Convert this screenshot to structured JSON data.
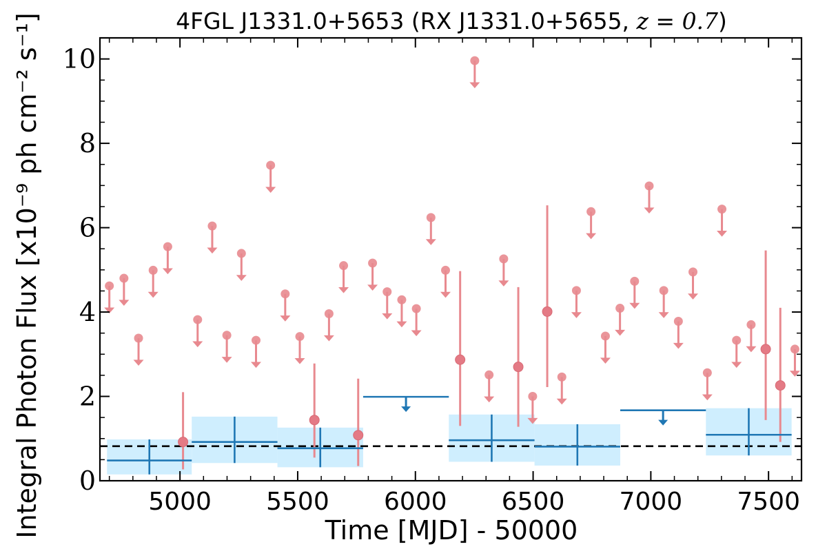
{
  "chart_data": {
    "type": "scatter",
    "title": "4FGL J1331.0+5653 (RX J1331.0+5655, z = 0.7)",
    "title_parts": {
      "prefix": "4FGL J1331.0+5653 (RX J1331.0+5655, ",
      "math": "z = 0.7",
      "suffix": ")"
    },
    "xlabel": "Time [MJD] - 50000",
    "ylabel": "Integral Photon Flux [x10⁻⁹ ph cm⁻² s⁻¹]",
    "xlim": [
      4660,
      7640
    ],
    "ylim": [
      0,
      10.5
    ],
    "x_ticks": [
      "5000",
      "5500",
      "6000",
      "6500",
      "7000",
      "7500"
    ],
    "y_ticks": [
      "0",
      "2",
      "4",
      "6",
      "8",
      "10"
    ],
    "grid": false,
    "mean_flux_dashed_line": 0.82,
    "colors": {
      "monthly": "#e8898f",
      "yearly": "#1f77b4",
      "yearly_band": "#cfeefe",
      "mean_line": "#000000"
    },
    "series": [
      {
        "kind": "upper_limit",
        "color": "#e8898f",
        "points": [
          [
            4700,
            4.62
          ],
          [
            4762,
            4.8
          ],
          [
            4824,
            3.38
          ],
          [
            4886,
            4.99
          ],
          [
            4948,
            5.55
          ],
          [
            5075,
            3.82
          ],
          [
            5137,
            6.04
          ],
          [
            5199,
            3.45
          ],
          [
            5261,
            5.39
          ],
          [
            5323,
            3.33
          ],
          [
            5385,
            7.48
          ],
          [
            5447,
            4.43
          ],
          [
            5509,
            3.42
          ],
          [
            5633,
            3.96
          ],
          [
            5695,
            5.1
          ],
          [
            5818,
            5.16
          ],
          [
            5880,
            4.48
          ],
          [
            5942,
            4.29
          ],
          [
            6004,
            4.08
          ],
          [
            6066,
            6.24
          ],
          [
            6128,
            4.99
          ],
          [
            6313,
            2.51
          ],
          [
            6375,
            5.26
          ],
          [
            6498,
            2.0
          ],
          [
            6622,
            2.46
          ],
          [
            6684,
            4.51
          ],
          [
            6746,
            6.38
          ],
          [
            6807,
            3.43
          ],
          [
            6869,
            4.09
          ],
          [
            6931,
            4.73
          ],
          [
            6993,
            6.99
          ],
          [
            7055,
            4.51
          ],
          [
            7117,
            3.78
          ],
          [
            7179,
            4.95
          ],
          [
            7240,
            2.56
          ],
          [
            7302,
            6.44
          ],
          [
            7364,
            3.33
          ],
          [
            7426,
            3.7
          ],
          [
            7612,
            3.12
          ]
        ]
      },
      {
        "kind": "detection",
        "color": "#e8898f",
        "points": [
          {
            "x": 5013,
            "y": 0.92,
            "lo": 0.27,
            "hi": 2.1
          },
          {
            "x": 5571,
            "y": 1.44,
            "lo": 0.55,
            "hi": 2.78
          },
          {
            "x": 5757,
            "y": 1.08,
            "lo": 0.35,
            "hi": 2.42
          },
          {
            "x": 6190,
            "y": 2.87,
            "lo": 1.3,
            "hi": 4.97
          },
          {
            "x": 6252,
            "y": 9.96,
            "lo": 9.96,
            "hi": 9.96
          },
          {
            "x": 6437,
            "y": 2.7,
            "lo": 1.28,
            "hi": 4.59
          },
          {
            "x": 6560,
            "y": 4.01,
            "lo": 2.22,
            "hi": 6.53
          },
          {
            "x": 7488,
            "y": 3.12,
            "lo": 1.44,
            "hi": 5.46
          },
          {
            "x": 7550,
            "y": 2.26,
            "lo": 0.92,
            "hi": 4.1
          }
        ]
      },
      {
        "kind": "yearly_detection",
        "color": "#1f77b4",
        "points": [
          {
            "x": 4870,
            "xlo": 4690,
            "xhi": 5050,
            "y": 0.48,
            "lo": 0.15,
            "hi": 0.98,
            "band_lo": 0.15,
            "band_hi": 0.98
          },
          {
            "x": 5232,
            "xlo": 5050,
            "xhi": 5414,
            "y": 0.92,
            "lo": 0.42,
            "hi": 1.52,
            "band_lo": 0.42,
            "band_hi": 1.52
          },
          {
            "x": 5596,
            "xlo": 5414,
            "xhi": 5778,
            "y": 0.77,
            "lo": 0.32,
            "hi": 1.26,
            "band_lo": 0.32,
            "band_hi": 1.26
          },
          {
            "x": 6324,
            "xlo": 6142,
            "xhi": 6506,
            "y": 0.96,
            "lo": 0.45,
            "hi": 1.57,
            "band_lo": 0.45,
            "band_hi": 1.57
          },
          {
            "x": 6688,
            "xlo": 6506,
            "xhi": 6870,
            "y": 0.81,
            "lo": 0.36,
            "hi": 1.34,
            "band_lo": 0.36,
            "band_hi": 1.34
          },
          {
            "x": 7416,
            "xlo": 7234,
            "xhi": 7598,
            "y": 1.09,
            "lo": 0.6,
            "hi": 1.72,
            "band_lo": 0.6,
            "band_hi": 1.72
          }
        ]
      },
      {
        "kind": "yearly_upper_limit",
        "color": "#1f77b4",
        "points": [
          {
            "x": 5960,
            "xlo": 5778,
            "xhi": 6142,
            "y": 1.99
          },
          {
            "x": 7052,
            "xlo": 6870,
            "xhi": 7234,
            "y": 1.67
          }
        ]
      }
    ]
  }
}
